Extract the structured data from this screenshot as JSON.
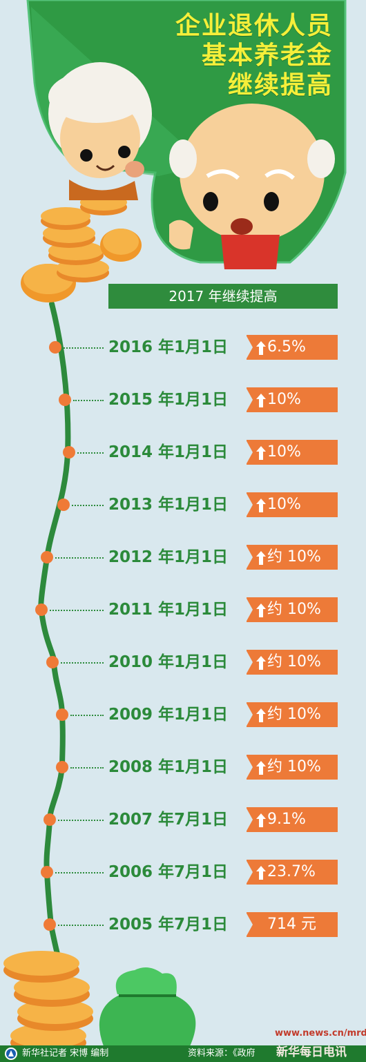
{
  "title": {
    "line1": "企业退休人员",
    "line2": "基本养老金",
    "line3": "继续提高"
  },
  "banner": "2017 年继续提高",
  "timeline": [
    {
      "date": "2016 年1月1日",
      "value": "6.5%",
      "arrow": true
    },
    {
      "date": "2015 年1月1日",
      "value": "10%",
      "arrow": true
    },
    {
      "date": "2014 年1月1日",
      "value": "10%",
      "arrow": true
    },
    {
      "date": "2013 年1月1日",
      "value": "10%",
      "arrow": true
    },
    {
      "date": "2012 年1月1日",
      "value": "约 10%",
      "arrow": true
    },
    {
      "date": "2011 年1月1日",
      "value": "约 10%",
      "arrow": true
    },
    {
      "date": "2010 年1月1日",
      "value": "约 10%",
      "arrow": true
    },
    {
      "date": "2009 年1月1日",
      "value": "约 10%",
      "arrow": true
    },
    {
      "date": "2008 年1月1日",
      "value": "约 10%",
      "arrow": true
    },
    {
      "date": "2007 年7月1日",
      "value": "9.1%",
      "arrow": true
    },
    {
      "date": "2006 年7月1日",
      "value": "23.7%",
      "arrow": true
    },
    {
      "date": "2005 年7月1日",
      "value": "714 元",
      "arrow": false
    }
  ],
  "footer": {
    "credit": "新华社记者 宋博 编制",
    "source": "资料来源：《政府"
  },
  "watermark": {
    "url": "www.news.cn/mrdx",
    "name": "新华每日电讯"
  },
  "colors": {
    "background": "#d9e8ee",
    "green": "#2f8c3d",
    "orange": "#ed7a38",
    "title_yellow": "#f5ef3a"
  }
}
